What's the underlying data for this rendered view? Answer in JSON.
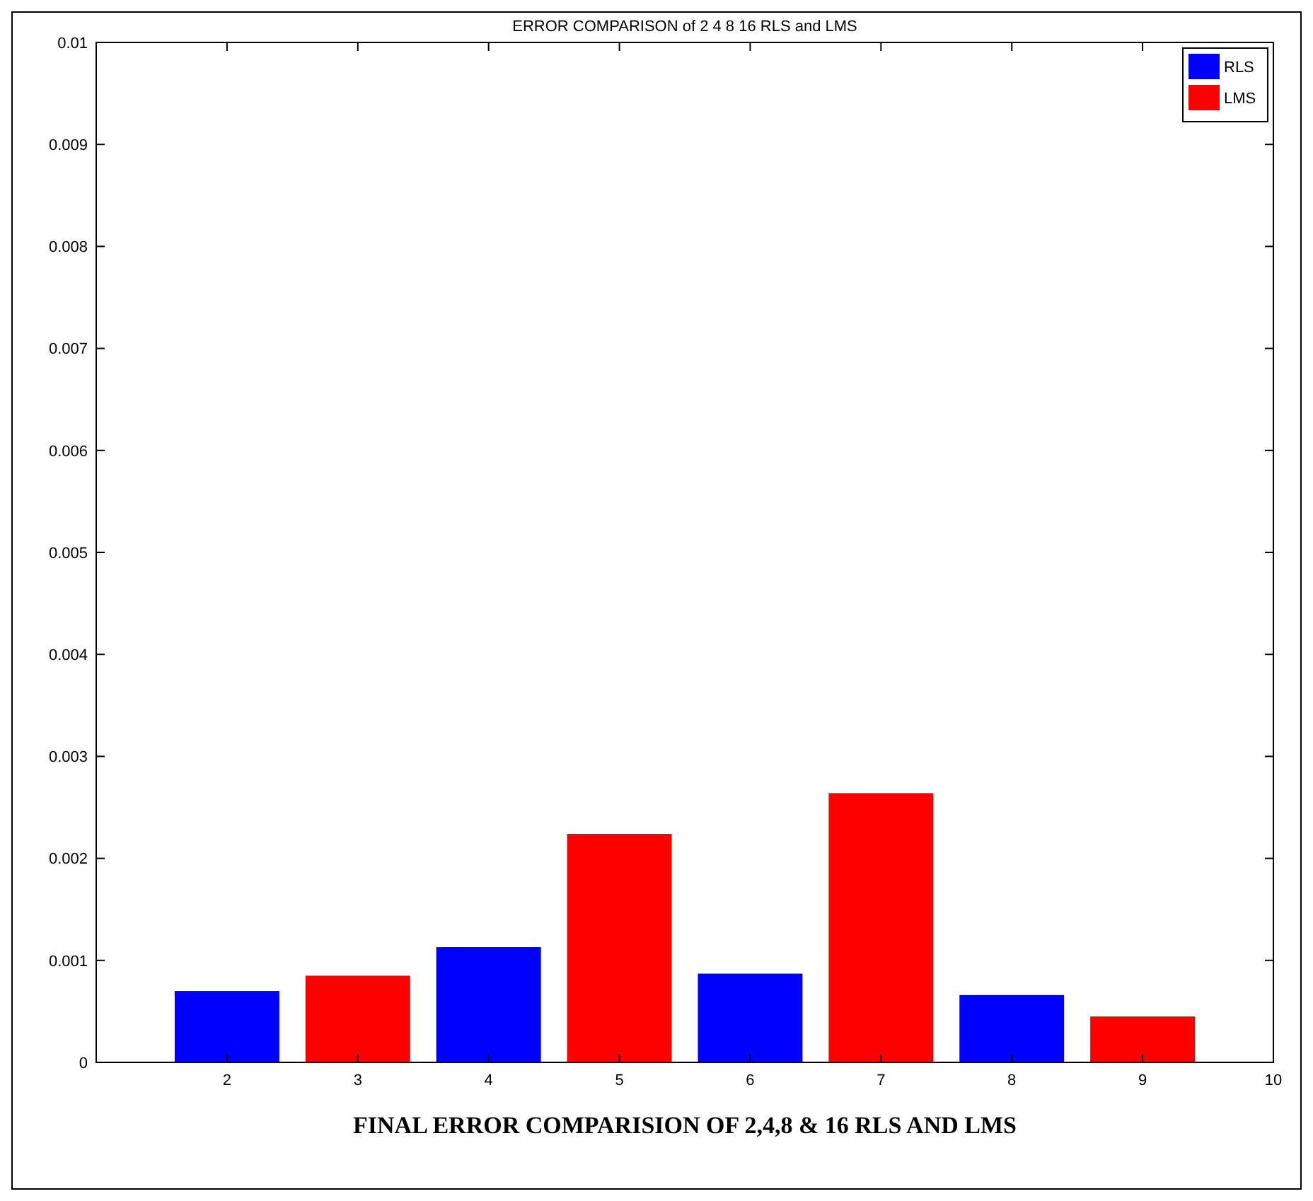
{
  "chart_data": {
    "type": "bar",
    "title": "ERROR COMPARISON of 2 4 8 16 RLS and LMS",
    "annotations": [
      "FINAL ERROR COMPARISION OF 2,4,8 & 16 RLS AND LMS"
    ],
    "series": [
      {
        "name": "RLS",
        "color": "#0000ff",
        "x": [
          2,
          4,
          6,
          8
        ],
        "values": [
          0.0007,
          0.00113,
          0.00087,
          0.00066
        ]
      },
      {
        "name": "LMS",
        "color": "#ff0000",
        "x": [
          3,
          5,
          7,
          9
        ],
        "values": [
          0.00085,
          0.00224,
          0.00264,
          0.00045
        ]
      }
    ],
    "xlim": [
      1,
      10
    ],
    "xticks": [
      2,
      3,
      4,
      5,
      6,
      7,
      8,
      9,
      10
    ],
    "ylim": [
      0,
      0.01
    ],
    "yticks": [
      0,
      0.001,
      0.002,
      0.003,
      0.004,
      0.005,
      0.006,
      0.007,
      0.008,
      0.009,
      0.01
    ],
    "grid": false,
    "legend": "top right"
  }
}
